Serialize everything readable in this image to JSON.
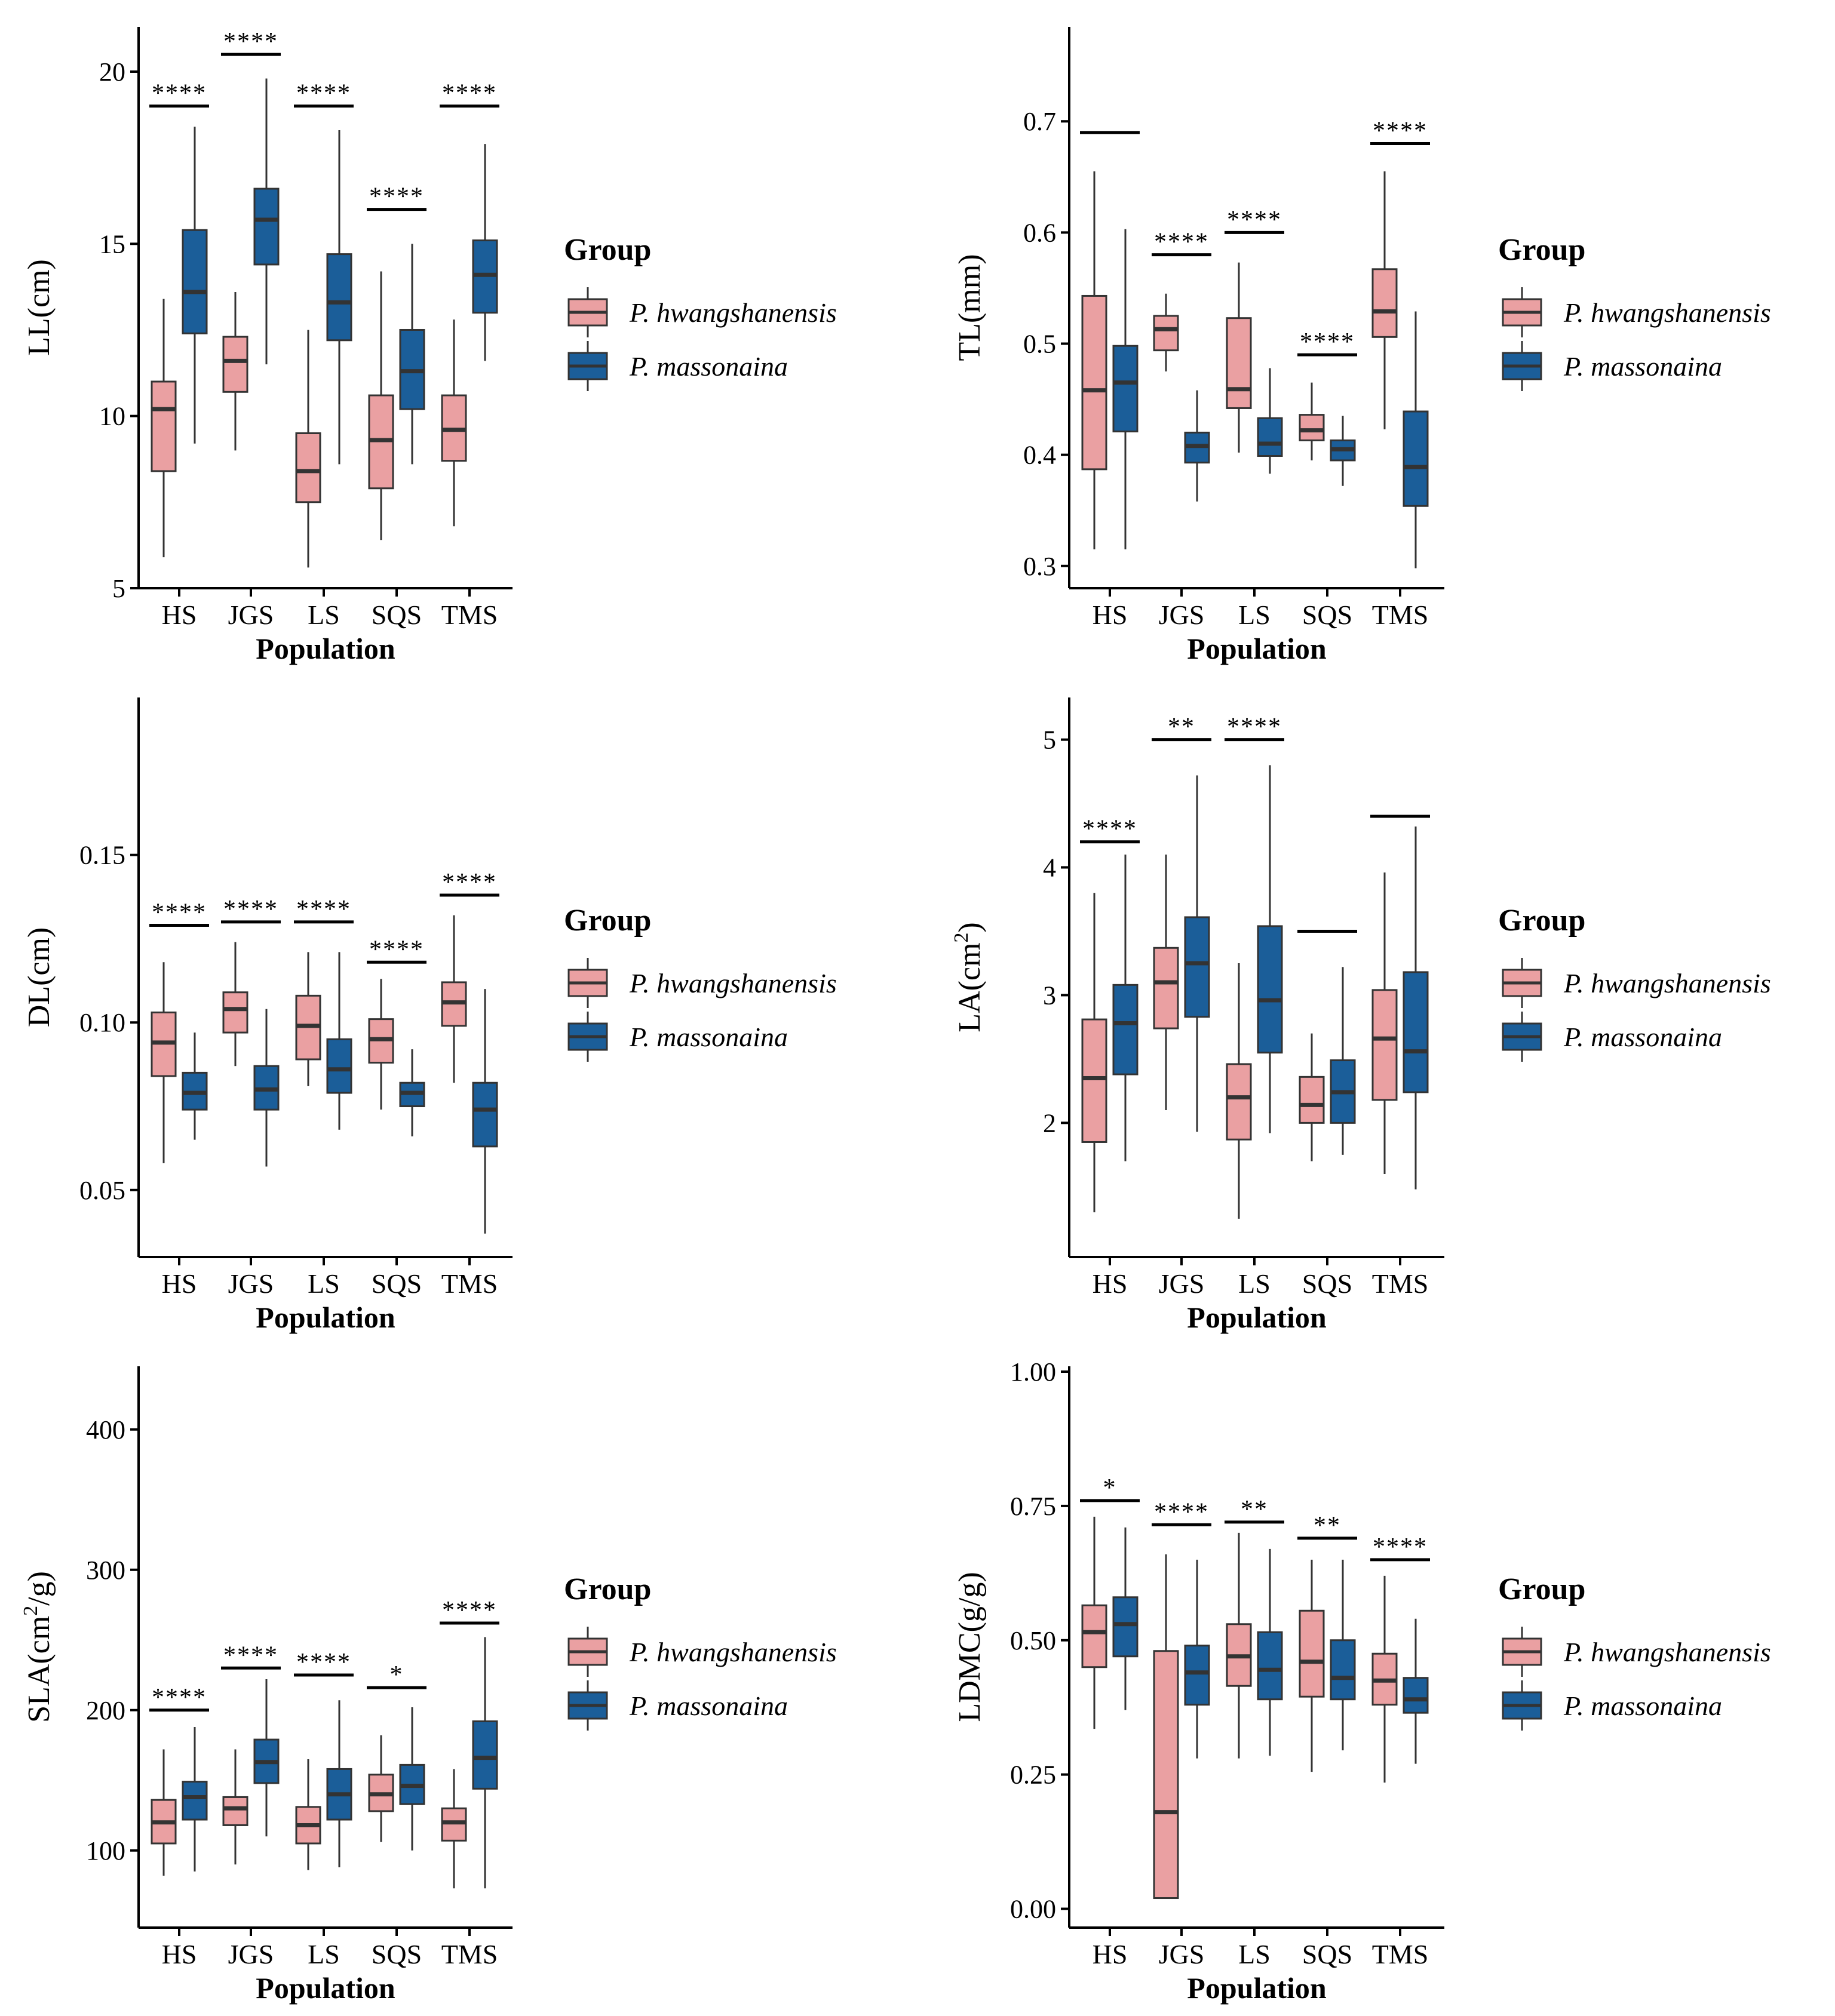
{
  "figure": {
    "populations": [
      "HS",
      "JGS",
      "LS",
      "SQS",
      "TMS"
    ],
    "x_label": "Population",
    "legend": {
      "title": "Group",
      "entries": [
        {
          "name": "P. hwangshanensis",
          "color": "#EAA0A2"
        },
        {
          "name": "P. massonaina",
          "color": "#1B5E99"
        }
      ]
    },
    "colors": {
      "outline": "#333333",
      "axis": "#000000"
    }
  },
  "chart_data": [
    {
      "type": "box",
      "name": "LL",
      "y_label": "LL(cm)",
      "y_min": 5,
      "y_max": 21.3,
      "y_ticks": [
        {
          "v": 5,
          "t": "5"
        },
        {
          "v": 10,
          "t": "10"
        },
        {
          "v": 15,
          "t": "15"
        },
        {
          "v": 20,
          "t": "20"
        }
      ],
      "series": [
        {
          "name": "P. hwangshanensis",
          "boxes": [
            {
              "lw": 5.9,
              "q1": 8.4,
              "med": 10.2,
              "q3": 11.0,
              "uw": 13.4
            },
            {
              "lw": 9.0,
              "q1": 10.7,
              "med": 11.6,
              "q3": 12.3,
              "uw": 13.6
            },
            {
              "lw": 5.6,
              "q1": 7.5,
              "med": 8.4,
              "q3": 9.5,
              "uw": 12.5
            },
            {
              "lw": 6.4,
              "q1": 7.9,
              "med": 9.3,
              "q3": 10.6,
              "uw": 14.2
            },
            {
              "lw": 6.8,
              "q1": 8.7,
              "med": 9.6,
              "q3": 10.6,
              "uw": 12.8
            }
          ]
        },
        {
          "name": "P. massonaina",
          "boxes": [
            {
              "lw": 9.2,
              "q1": 12.4,
              "med": 13.6,
              "q3": 15.4,
              "uw": 18.4
            },
            {
              "lw": 11.5,
              "q1": 14.4,
              "med": 15.7,
              "q3": 16.6,
              "uw": 19.8
            },
            {
              "lw": 8.6,
              "q1": 12.2,
              "med": 13.3,
              "q3": 14.7,
              "uw": 18.3
            },
            {
              "lw": 8.6,
              "q1": 10.2,
              "med": 11.3,
              "q3": 12.5,
              "uw": 15.0
            },
            {
              "lw": 11.6,
              "q1": 13.0,
              "med": 14.1,
              "q3": 15.1,
              "uw": 17.9
            }
          ]
        }
      ],
      "significance": [
        {
          "pop": "HS",
          "label": "****",
          "y": 19.0
        },
        {
          "pop": "JGS",
          "label": "****",
          "y": 20.5
        },
        {
          "pop": "LS",
          "label": "****",
          "y": 19.0
        },
        {
          "pop": "SQS",
          "label": "****",
          "y": 16.0
        },
        {
          "pop": "TMS",
          "label": "****",
          "y": 19.0
        }
      ]
    },
    {
      "type": "box",
      "name": "TL",
      "y_label": "TL(mm)",
      "y_min": 0.28,
      "y_max": 0.785,
      "y_ticks": [
        {
          "v": 0.3,
          "t": "0.3"
        },
        {
          "v": 0.4,
          "t": "0.4"
        },
        {
          "v": 0.5,
          "t": "0.5"
        },
        {
          "v": 0.6,
          "t": "0.6"
        },
        {
          "v": 0.7,
          "t": "0.7"
        }
      ],
      "series": [
        {
          "name": "P. hwangshanensis",
          "boxes": [
            {
              "lw": 0.315,
              "q1": 0.387,
              "med": 0.458,
              "q3": 0.543,
              "uw": 0.655
            },
            {
              "lw": 0.475,
              "q1": 0.494,
              "med": 0.513,
              "q3": 0.525,
              "uw": 0.545
            },
            {
              "lw": 0.402,
              "q1": 0.442,
              "med": 0.459,
              "q3": 0.523,
              "uw": 0.573
            },
            {
              "lw": 0.395,
              "q1": 0.413,
              "med": 0.422,
              "q3": 0.436,
              "uw": 0.465
            },
            {
              "lw": 0.423,
              "q1": 0.506,
              "med": 0.529,
              "q3": 0.567,
              "uw": 0.655
            }
          ]
        },
        {
          "name": "P. massonaina",
          "boxes": [
            {
              "lw": 0.315,
              "q1": 0.421,
              "med": 0.465,
              "q3": 0.498,
              "uw": 0.603
            },
            {
              "lw": 0.358,
              "q1": 0.393,
              "med": 0.408,
              "q3": 0.42,
              "uw": 0.458
            },
            {
              "lw": 0.383,
              "q1": 0.399,
              "med": 0.41,
              "q3": 0.433,
              "uw": 0.478
            },
            {
              "lw": 0.372,
              "q1": 0.395,
              "med": 0.405,
              "q3": 0.413,
              "uw": 0.435
            },
            {
              "lw": 0.298,
              "q1": 0.354,
              "med": 0.389,
              "q3": 0.439,
              "uw": 0.529
            }
          ]
        }
      ],
      "significance": [
        {
          "pop": "HS",
          "label": "",
          "y": 0.69
        },
        {
          "pop": "JGS",
          "label": "****",
          "y": 0.58
        },
        {
          "pop": "LS",
          "label": "****",
          "y": 0.6
        },
        {
          "pop": "SQS",
          "label": "****",
          "y": 0.49
        },
        {
          "pop": "TMS",
          "label": "****",
          "y": 0.68
        }
      ]
    },
    {
      "type": "box",
      "name": "DL",
      "y_label": "DL(cm)",
      "y_min": 0.03,
      "y_max": 0.197,
      "y_ticks": [
        {
          "v": 0.05,
          "t": "0.05"
        },
        {
          "v": 0.1,
          "t": "0.10"
        },
        {
          "v": 0.15,
          "t": "0.15"
        }
      ],
      "series": [
        {
          "name": "P. hwangshanensis",
          "boxes": [
            {
              "lw": 0.058,
              "q1": 0.084,
              "med": 0.094,
              "q3": 0.103,
              "uw": 0.118
            },
            {
              "lw": 0.087,
              "q1": 0.097,
              "med": 0.104,
              "q3": 0.109,
              "uw": 0.124
            },
            {
              "lw": 0.081,
              "q1": 0.089,
              "med": 0.099,
              "q3": 0.108,
              "uw": 0.121
            },
            {
              "lw": 0.074,
              "q1": 0.088,
              "med": 0.095,
              "q3": 0.101,
              "uw": 0.113
            },
            {
              "lw": 0.082,
              "q1": 0.099,
              "med": 0.106,
              "q3": 0.112,
              "uw": 0.132
            }
          ]
        },
        {
          "name": "P. massonaina",
          "boxes": [
            {
              "lw": 0.065,
              "q1": 0.074,
              "med": 0.079,
              "q3": 0.085,
              "uw": 0.097
            },
            {
              "lw": 0.057,
              "q1": 0.074,
              "med": 0.08,
              "q3": 0.087,
              "uw": 0.104
            },
            {
              "lw": 0.068,
              "q1": 0.079,
              "med": 0.086,
              "q3": 0.095,
              "uw": 0.121
            },
            {
              "lw": 0.066,
              "q1": 0.075,
              "med": 0.079,
              "q3": 0.082,
              "uw": 0.092
            },
            {
              "lw": 0.037,
              "q1": 0.063,
              "med": 0.074,
              "q3": 0.082,
              "uw": 0.11
            }
          ]
        }
      ],
      "significance": [
        {
          "pop": "HS",
          "label": "****",
          "y": 0.129
        },
        {
          "pop": "JGS",
          "label": "****",
          "y": 0.13
        },
        {
          "pop": "LS",
          "label": "****",
          "y": 0.13
        },
        {
          "pop": "SQS",
          "label": "****",
          "y": 0.118
        },
        {
          "pop": "TMS",
          "label": "****",
          "y": 0.138
        }
      ]
    },
    {
      "type": "box",
      "name": "LA",
      "y_label": "LA(cm",
      "y_label_sup": "2",
      "y_label_end": ")",
      "y_min": 0.95,
      "y_max": 5.33,
      "y_ticks": [
        {
          "v": 2,
          "t": "2"
        },
        {
          "v": 3,
          "t": "3"
        },
        {
          "v": 4,
          "t": "4"
        },
        {
          "v": 5,
          "t": "5"
        }
      ],
      "series": [
        {
          "name": "P. hwangshanensis",
          "boxes": [
            {
              "lw": 1.3,
              "q1": 1.85,
              "med": 2.35,
              "q3": 2.81,
              "uw": 3.8
            },
            {
              "lw": 2.1,
              "q1": 2.74,
              "med": 3.1,
              "q3": 3.37,
              "uw": 4.1
            },
            {
              "lw": 1.25,
              "q1": 1.87,
              "med": 2.2,
              "q3": 2.46,
              "uw": 3.25
            },
            {
              "lw": 1.7,
              "q1": 2.0,
              "med": 2.14,
              "q3": 2.36,
              "uw": 2.7
            },
            {
              "lw": 1.6,
              "q1": 2.18,
              "med": 2.66,
              "q3": 3.04,
              "uw": 3.96
            }
          ]
        },
        {
          "name": "P. massonaina",
          "boxes": [
            {
              "lw": 1.7,
              "q1": 2.38,
              "med": 2.78,
              "q3": 3.08,
              "uw": 4.1
            },
            {
              "lw": 1.93,
              "q1": 2.83,
              "med": 3.25,
              "q3": 3.61,
              "uw": 4.72
            },
            {
              "lw": 1.92,
              "q1": 2.55,
              "med": 2.96,
              "q3": 3.54,
              "uw": 4.8
            },
            {
              "lw": 1.75,
              "q1": 2.0,
              "med": 2.24,
              "q3": 2.49,
              "uw": 3.22
            },
            {
              "lw": 1.48,
              "q1": 2.24,
              "med": 2.56,
              "q3": 3.18,
              "uw": 4.32
            }
          ]
        }
      ],
      "significance": [
        {
          "pop": "HS",
          "label": "****",
          "y": 4.2
        },
        {
          "pop": "JGS",
          "label": "**",
          "y": 5.0
        },
        {
          "pop": "LS",
          "label": "****",
          "y": 5.0
        },
        {
          "pop": "SQS",
          "label": "",
          "y": 3.5
        },
        {
          "pop": "TMS",
          "label": "",
          "y": 4.4
        }
      ]
    },
    {
      "type": "box",
      "name": "SLA",
      "y_label": "SLA(cm",
      "y_label_sup": "2",
      "y_label_end": "/g)",
      "y_min": 45,
      "y_max": 445,
      "y_ticks": [
        {
          "v": 100,
          "t": "100"
        },
        {
          "v": 200,
          "t": "200"
        },
        {
          "v": 300,
          "t": "300"
        },
        {
          "v": 400,
          "t": "400"
        }
      ],
      "series": [
        {
          "name": "P. hwangshanensis",
          "boxes": [
            {
              "lw": 82,
              "q1": 105,
              "med": 120,
              "q3": 136,
              "uw": 172
            },
            {
              "lw": 90,
              "q1": 118,
              "med": 130,
              "q3": 138,
              "uw": 172
            },
            {
              "lw": 86,
              "q1": 105,
              "med": 118,
              "q3": 131,
              "uw": 165
            },
            {
              "lw": 106,
              "q1": 128,
              "med": 140,
              "q3": 154,
              "uw": 182
            },
            {
              "lw": 73,
              "q1": 107,
              "med": 120,
              "q3": 130,
              "uw": 158
            }
          ]
        },
        {
          "name": "P. massonaina",
          "boxes": [
            {
              "lw": 85,
              "q1": 122,
              "med": 138,
              "q3": 149,
              "uw": 188
            },
            {
              "lw": 110,
              "q1": 148,
              "med": 163,
              "q3": 179,
              "uw": 222
            },
            {
              "lw": 88,
              "q1": 122,
              "med": 140,
              "q3": 158,
              "uw": 207
            },
            {
              "lw": 100,
              "q1": 133,
              "med": 146,
              "q3": 161,
              "uw": 202
            },
            {
              "lw": 73,
              "q1": 144,
              "med": 166,
              "q3": 192,
              "uw": 252
            }
          ]
        }
      ],
      "significance": [
        {
          "pop": "HS",
          "label": "****",
          "y": 200
        },
        {
          "pop": "JGS",
          "label": "****",
          "y": 230
        },
        {
          "pop": "LS",
          "label": "****",
          "y": 225
        },
        {
          "pop": "SQS",
          "label": "*",
          "y": 216
        },
        {
          "pop": "TMS",
          "label": "****",
          "y": 262
        }
      ]
    },
    {
      "type": "box",
      "name": "LDMC",
      "y_label": "LDMC(g/g)",
      "y_min": -0.035,
      "y_max": 1.01,
      "y_ticks": [
        {
          "v": 0,
          "t": "0.00"
        },
        {
          "v": 0.25,
          "t": "0.25"
        },
        {
          "v": 0.5,
          "t": "0.50"
        },
        {
          "v": 0.75,
          "t": "0.75"
        },
        {
          "v": 1.0,
          "t": "1.00"
        }
      ],
      "series": [
        {
          "name": "P. hwangshanensis",
          "boxes": [
            {
              "lw": 0.335,
              "q1": 0.45,
              "med": 0.515,
              "q3": 0.565,
              "uw": 0.73
            },
            {
              "lw": 0.02,
              "q1": 0.02,
              "med": 0.18,
              "q3": 0.48,
              "uw": 0.66
            },
            {
              "lw": 0.28,
              "q1": 0.415,
              "med": 0.47,
              "q3": 0.53,
              "uw": 0.7
            },
            {
              "lw": 0.255,
              "q1": 0.395,
              "med": 0.46,
              "q3": 0.555,
              "uw": 0.65
            },
            {
              "lw": 0.235,
              "q1": 0.38,
              "med": 0.425,
              "q3": 0.475,
              "uw": 0.62
            }
          ]
        },
        {
          "name": "P. massonaina",
          "boxes": [
            {
              "lw": 0.37,
              "q1": 0.47,
              "med": 0.53,
              "q3": 0.58,
              "uw": 0.71
            },
            {
              "lw": 0.28,
              "q1": 0.38,
              "med": 0.44,
              "q3": 0.49,
              "uw": 0.65
            },
            {
              "lw": 0.285,
              "q1": 0.39,
              "med": 0.445,
              "q3": 0.515,
              "uw": 0.67
            },
            {
              "lw": 0.295,
              "q1": 0.39,
              "med": 0.43,
              "q3": 0.5,
              "uw": 0.65
            },
            {
              "lw": 0.27,
              "q1": 0.365,
              "med": 0.39,
              "q3": 0.43,
              "uw": 0.54
            }
          ]
        }
      ],
      "significance": [
        {
          "pop": "HS",
          "label": "*",
          "y": 0.76
        },
        {
          "pop": "JGS",
          "label": "****",
          "y": 0.715
        },
        {
          "pop": "LS",
          "label": "**",
          "y": 0.72
        },
        {
          "pop": "SQS",
          "label": "**",
          "y": 0.69
        },
        {
          "pop": "TMS",
          "label": "****",
          "y": 0.65
        }
      ]
    }
  ]
}
